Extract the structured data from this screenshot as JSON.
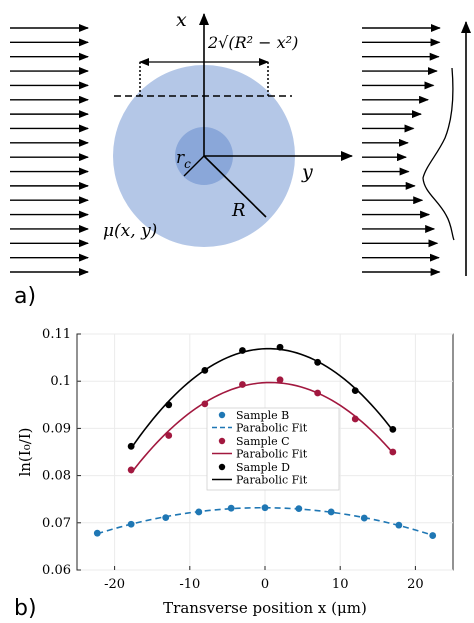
{
  "panel_a": {
    "label": "a)",
    "x_axis_label": "x",
    "y_axis_label": "y",
    "radius_label": "R",
    "core_label": "r",
    "core_label_sub": "c",
    "chord_label": "2√(R² − x²)",
    "mu_label": "μ(x, y)",
    "colors": {
      "outer_disk": "#b4c7e7",
      "inner_core": "#8aa7d9",
      "arrows": "#000000"
    }
  },
  "panel_b": {
    "label": "b)"
  },
  "chart_data": {
    "type": "scatter",
    "xlabel": "Transverse position x (μm)",
    "ylabel": "ln(I₀/I)",
    "xlim": [
      -25,
      25
    ],
    "ylim": [
      0.06,
      0.11
    ],
    "xticks": [
      -20,
      -10,
      0,
      10,
      20
    ],
    "yticks": [
      0.06,
      0.07,
      0.08,
      0.09,
      0.1,
      0.11
    ],
    "xtick_labels": [
      "-20",
      "-10",
      "0",
      "10",
      "20"
    ],
    "ytick_labels": [
      "0.06",
      "0.07",
      "0.08",
      "0.09",
      "0.1",
      "0.11"
    ],
    "grid": true,
    "legend_position": "center",
    "series": [
      {
        "name": "Sample B",
        "fit_name": "Parabolic Fit",
        "color": "#1f77b4",
        "fit_style": "dashed",
        "x": [
          -22.3,
          -17.8,
          -13.2,
          -8.8,
          -4.5,
          0,
          4.5,
          8.8,
          13.2,
          17.8,
          22.3
        ],
        "y": [
          0.0678,
          0.0697,
          0.0711,
          0.0723,
          0.0731,
          0.0732,
          0.073,
          0.0723,
          0.071,
          0.0695,
          0.0673
        ],
        "fit_range": [
          -22.3,
          22.3
        ]
      },
      {
        "name": "Sample C",
        "fit_name": "Parabolic Fit",
        "color": "#a2183f",
        "fit_style": "solid",
        "x": [
          -17.8,
          -12.8,
          -8.0,
          -3.0,
          2.0,
          7.0,
          12.0,
          17.0
        ],
        "y": [
          0.0812,
          0.0885,
          0.0952,
          0.0993,
          0.1003,
          0.0975,
          0.092,
          0.085
        ],
        "fit_range": [
          -17.8,
          17.0
        ]
      },
      {
        "name": "Sample D",
        "fit_name": "Parabolic Fit",
        "color": "#000000",
        "fit_style": "solid",
        "x": [
          -17.8,
          -12.8,
          -8.0,
          -3.0,
          2.0,
          7.0,
          12.0,
          17.0
        ],
        "y": [
          0.0862,
          0.095,
          0.1023,
          0.1065,
          0.1072,
          0.104,
          0.098,
          0.0898
        ],
        "fit_range": [
          -17.8,
          17.0
        ]
      }
    ]
  }
}
